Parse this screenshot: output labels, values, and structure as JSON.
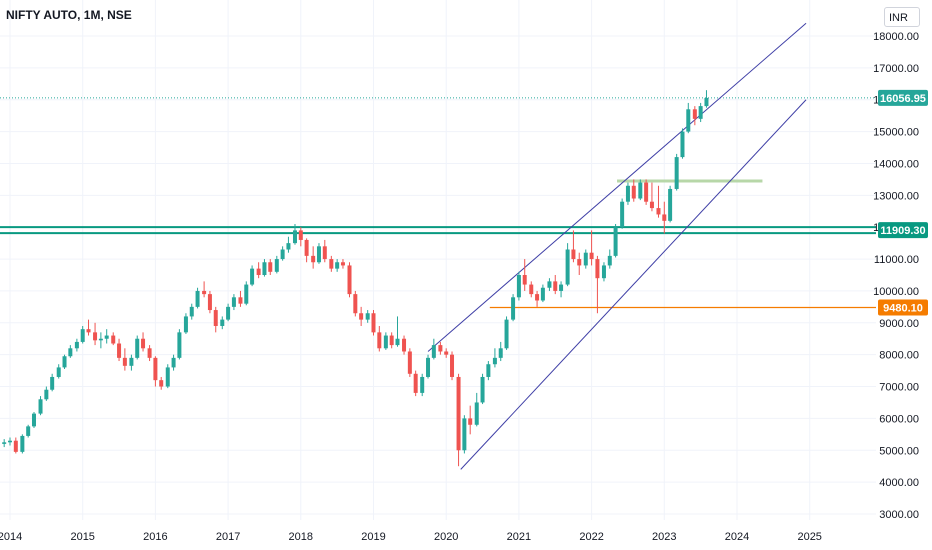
{
  "symbol": {
    "title": "NIFTY AUTO, 1M, NSE"
  },
  "currency": "INR",
  "colors": {
    "up": "#26a69a",
    "down": "#ef5350",
    "channel": "#3f3fa6",
    "hline_green": "#089981",
    "hline_orange": "#f57c00"
  },
  "chart_data": {
    "type": "candlestick",
    "ylim": [
      2750,
      18500
    ],
    "y_ticks": [
      3000,
      4000,
      5000,
      6000,
      7000,
      8000,
      9000,
      10000,
      11000,
      12000,
      13000,
      14000,
      15000,
      16000,
      17000,
      18000
    ],
    "y_tick_labels": [
      "3000.00",
      "4000.00",
      "5000.00",
      "6000.00",
      "7000.00",
      "8000.00",
      "9000.00",
      "10000.00",
      "11000.00",
      "12000.00",
      "13000.00",
      "14000.00",
      "15000.00",
      "16000.00",
      "17000.00",
      "18000.00"
    ],
    "x_labels": [
      "2014",
      "2015",
      "2016",
      "2017",
      "2018",
      "2019",
      "2020",
      "2021",
      "2022",
      "2023",
      "2024",
      "2025"
    ],
    "x_label_years": [
      2014,
      2015,
      2016,
      2017,
      2018,
      2019,
      2020,
      2021,
      2022,
      2023,
      2024,
      2025
    ],
    "last_price": {
      "value": 16056.95,
      "label": "16056.95"
    },
    "price_lines": [
      {
        "value": 11909.3,
        "label": "11909.30",
        "color": "#089981"
      },
      {
        "value": 9480.1,
        "label": "9480.10",
        "color": "#f57c00"
      }
    ],
    "candles": [
      [
        2013.92,
        5200,
        5350,
        5100,
        5250
      ],
      [
        2014.0,
        5250,
        5400,
        5150,
        5300
      ],
      [
        2014.08,
        5300,
        5400,
        4900,
        4950
      ],
      [
        2014.17,
        4950,
        5500,
        4900,
        5450
      ],
      [
        2014.25,
        5450,
        5800,
        5400,
        5750
      ],
      [
        2014.33,
        5750,
        6200,
        5700,
        6150
      ],
      [
        2014.42,
        6150,
        6700,
        6100,
        6600
      ],
      [
        2014.5,
        6600,
        7000,
        6550,
        6900
      ],
      [
        2014.58,
        6900,
        7400,
        6850,
        7300
      ],
      [
        2014.67,
        7300,
        7700,
        7250,
        7600
      ],
      [
        2014.75,
        7600,
        8000,
        7550,
        7950
      ],
      [
        2014.83,
        7950,
        8300,
        7900,
        8200
      ],
      [
        2014.92,
        8200,
        8500,
        8100,
        8400
      ],
      [
        2015.0,
        8400,
        8900,
        8350,
        8800
      ],
      [
        2015.08,
        8800,
        9100,
        8600,
        8700
      ],
      [
        2015.17,
        8700,
        9000,
        8300,
        8450
      ],
      [
        2015.25,
        8450,
        8700,
        8200,
        8500
      ],
      [
        2015.33,
        8500,
        8800,
        8350,
        8600
      ],
      [
        2015.42,
        8600,
        8700,
        8300,
        8350
      ],
      [
        2015.5,
        8350,
        8500,
        7800,
        7900
      ],
      [
        2015.58,
        7900,
        8200,
        7500,
        7650
      ],
      [
        2015.67,
        7650,
        8000,
        7500,
        7900
      ],
      [
        2015.75,
        7900,
        8600,
        7850,
        8500
      ],
      [
        2015.83,
        8500,
        8700,
        8100,
        8200
      ],
      [
        2015.92,
        8200,
        8300,
        7800,
        7900
      ],
      [
        2016.0,
        7900,
        7950,
        7000,
        7200
      ],
      [
        2016.08,
        7200,
        7300,
        6900,
        7000
      ],
      [
        2016.17,
        7000,
        7700,
        6950,
        7600
      ],
      [
        2016.25,
        7600,
        8000,
        7500,
        7900
      ],
      [
        2016.33,
        7900,
        8800,
        7850,
        8700
      ],
      [
        2016.42,
        8700,
        9300,
        8650,
        9200
      ],
      [
        2016.5,
        9200,
        9600,
        9100,
        9500
      ],
      [
        2016.58,
        9500,
        10100,
        9450,
        10000
      ],
      [
        2016.67,
        10000,
        10300,
        9800,
        9900
      ],
      [
        2016.75,
        9900,
        10000,
        9300,
        9400
      ],
      [
        2016.83,
        9400,
        9500,
        8700,
        8900
      ],
      [
        2016.92,
        8900,
        9200,
        8800,
        9100
      ],
      [
        2017.0,
        9100,
        9600,
        9050,
        9500
      ],
      [
        2017.08,
        9500,
        9900,
        9400,
        9800
      ],
      [
        2017.17,
        9800,
        10000,
        9500,
        9600
      ],
      [
        2017.25,
        9600,
        10300,
        9550,
        10200
      ],
      [
        2017.33,
        10200,
        10800,
        10150,
        10700
      ],
      [
        2017.42,
        10700,
        10900,
        10400,
        10500
      ],
      [
        2017.5,
        10500,
        11000,
        10450,
        10900
      ],
      [
        2017.58,
        10900,
        11000,
        10500,
        10600
      ],
      [
        2017.67,
        10600,
        11100,
        10550,
        11000
      ],
      [
        2017.75,
        11000,
        11400,
        10950,
        11300
      ],
      [
        2017.83,
        11300,
        11700,
        11200,
        11500
      ],
      [
        2017.92,
        11500,
        12100,
        11450,
        11900
      ],
      [
        2018.0,
        11900,
        12000,
        11400,
        11600
      ],
      [
        2018.08,
        11600,
        11650,
        10900,
        11100
      ],
      [
        2018.17,
        11100,
        11400,
        10700,
        10900
      ],
      [
        2018.25,
        10900,
        11500,
        10850,
        11400
      ],
      [
        2018.33,
        11400,
        11600,
        10900,
        11000
      ],
      [
        2018.42,
        11000,
        11100,
        10600,
        10700
      ],
      [
        2018.5,
        10700,
        11000,
        10600,
        10900
      ],
      [
        2018.58,
        10900,
        11000,
        10700,
        10800
      ],
      [
        2018.67,
        10800,
        10900,
        9800,
        9900
      ],
      [
        2018.75,
        9900,
        10000,
        9200,
        9300
      ],
      [
        2018.83,
        9300,
        9500,
        8900,
        9100
      ],
      [
        2018.92,
        9100,
        9400,
        9000,
        9300
      ],
      [
        2019.0,
        9300,
        9400,
        8600,
        8700
      ],
      [
        2019.08,
        8700,
        8900,
        8100,
        8200
      ],
      [
        2019.17,
        8200,
        8700,
        8150,
        8600
      ],
      [
        2019.25,
        8600,
        8700,
        8200,
        8300
      ],
      [
        2019.33,
        8300,
        9200,
        8250,
        8500
      ],
      [
        2019.42,
        8500,
        8600,
        8000,
        8100
      ],
      [
        2019.5,
        8100,
        8200,
        7300,
        7400
      ],
      [
        2019.58,
        7400,
        7500,
        6700,
        6800
      ],
      [
        2019.67,
        6800,
        7400,
        6700,
        7300
      ],
      [
        2019.75,
        7300,
        8000,
        7250,
        7900
      ],
      [
        2019.83,
        7900,
        8500,
        7850,
        8300
      ],
      [
        2019.92,
        8300,
        8400,
        8000,
        8100
      ],
      [
        2020.0,
        8100,
        8200,
        7900,
        8000
      ],
      [
        2020.08,
        8000,
        8100,
        7200,
        7300
      ],
      [
        2020.17,
        7300,
        7400,
        4500,
        5000
      ],
      [
        2020.25,
        5000,
        6100,
        4900,
        6000
      ],
      [
        2020.33,
        6000,
        6400,
        5500,
        5800
      ],
      [
        2020.42,
        5800,
        6800,
        5750,
        6500
      ],
      [
        2020.5,
        6500,
        7400,
        6450,
        7300
      ],
      [
        2020.58,
        7300,
        7800,
        7200,
        7700
      ],
      [
        2020.67,
        7700,
        8200,
        7600,
        7900
      ],
      [
        2020.75,
        7900,
        8400,
        7800,
        8200
      ],
      [
        2020.83,
        8200,
        9200,
        8150,
        9100
      ],
      [
        2020.92,
        9100,
        9900,
        9050,
        9800
      ],
      [
        2021.0,
        9800,
        10600,
        9700,
        10500
      ],
      [
        2021.08,
        10500,
        11000,
        10000,
        10200
      ],
      [
        2021.17,
        10200,
        10300,
        9800,
        9900
      ],
      [
        2021.25,
        9900,
        10000,
        9500,
        9700
      ],
      [
        2021.33,
        9700,
        10200,
        9650,
        10100
      ],
      [
        2021.42,
        10100,
        10400,
        10000,
        10300
      ],
      [
        2021.5,
        10300,
        10500,
        9900,
        10000
      ],
      [
        2021.58,
        10000,
        10300,
        9800,
        10200
      ],
      [
        2021.67,
        10200,
        11500,
        10150,
        11300
      ],
      [
        2021.75,
        11300,
        11900,
        10900,
        11000
      ],
      [
        2021.83,
        11000,
        11200,
        10500,
        10800
      ],
      [
        2021.92,
        10800,
        11300,
        10700,
        11200
      ],
      [
        2022.0,
        11200,
        11900,
        10800,
        11000
      ],
      [
        2022.08,
        11000,
        11100,
        9300,
        10400
      ],
      [
        2022.17,
        10400,
        10900,
        10300,
        10800
      ],
      [
        2022.25,
        10800,
        11300,
        10700,
        11100
      ],
      [
        2022.33,
        11100,
        12100,
        11050,
        12000
      ],
      [
        2022.42,
        12000,
        12900,
        11950,
        12800
      ],
      [
        2022.5,
        12800,
        13400,
        12700,
        13300
      ],
      [
        2022.58,
        13300,
        13500,
        12800,
        12900
      ],
      [
        2022.67,
        12900,
        13500,
        12850,
        13400
      ],
      [
        2022.75,
        13400,
        13500,
        12700,
        12800
      ],
      [
        2022.83,
        12800,
        13400,
        12500,
        12600
      ],
      [
        2022.92,
        12600,
        13300,
        12300,
        12400
      ],
      [
        2023.0,
        12400,
        12800,
        11800,
        12200
      ],
      [
        2023.08,
        12200,
        13300,
        12150,
        13200
      ],
      [
        2023.17,
        13200,
        14300,
        13150,
        14200
      ],
      [
        2023.25,
        14200,
        15100,
        14150,
        15000
      ],
      [
        2023.33,
        15000,
        15900,
        14950,
        15700
      ],
      [
        2023.42,
        15700,
        15800,
        15200,
        15400
      ],
      [
        2023.5,
        15400,
        15900,
        15300,
        15800
      ],
      [
        2023.58,
        15800,
        16300,
        15750,
        16057
      ]
    ]
  }
}
